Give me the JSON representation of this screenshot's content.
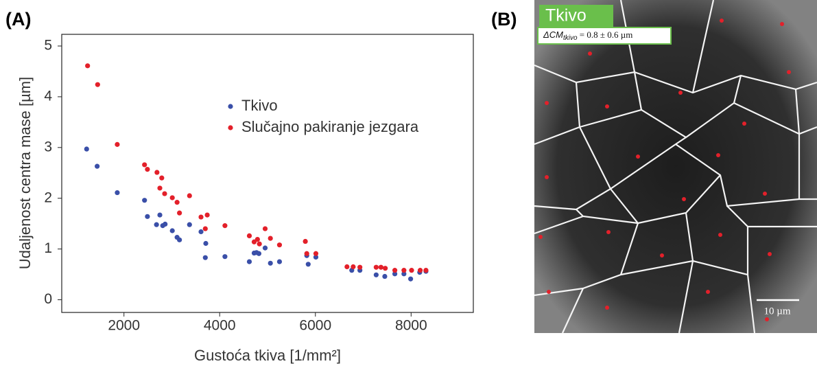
{
  "chart_data": {
    "type": "scatter",
    "panel_label": "(A)",
    "x_label": "Gustoća tkiva [1/mm²]",
    "y_label": "Udaljenost centra mase [µm]",
    "xlim": [
      700,
      9300
    ],
    "xticks": [
      2000,
      4000,
      6000,
      8000
    ],
    "ylim": [
      -0.25,
      5.23
    ],
    "yticks": [
      0,
      1,
      2,
      3,
      4,
      5
    ],
    "grid": false,
    "legend": "upper right",
    "series": [
      {
        "name": "Tkivo",
        "color": "#3a4fa8",
        "x": [
          1220,
          1440,
          1860,
          2430,
          2490,
          2680,
          2750,
          2810,
          2860,
          3010,
          3110,
          3160,
          3370,
          3610,
          3710,
          3700,
          4110,
          4620,
          4720,
          4770,
          4820,
          4950,
          5060,
          5250,
          5820,
          5850,
          6010,
          6760,
          6930,
          7270,
          7450,
          7660,
          7850,
          7990,
          8180,
          8310
        ],
        "values": [
          2.97,
          2.63,
          2.11,
          1.96,
          1.64,
          1.48,
          1.67,
          1.46,
          1.49,
          1.36,
          1.23,
          1.18,
          1.48,
          1.34,
          1.11,
          0.83,
          0.85,
          0.75,
          0.92,
          0.93,
          0.91,
          1.02,
          0.72,
          0.75,
          0.87,
          0.7,
          0.84,
          0.58,
          0.58,
          0.49,
          0.46,
          0.51,
          0.51,
          0.41,
          0.54,
          0.56
        ]
      },
      {
        "name": "Slučajno pakiranje jezgara",
        "color": "#e3202a",
        "x": [
          1240,
          1450,
          1860,
          2430,
          2490,
          2690,
          2790,
          2750,
          2850,
          3010,
          3110,
          3160,
          3370,
          3610,
          3740,
          3700,
          4110,
          4620,
          4720,
          4790,
          4830,
          4950,
          5060,
          5250,
          5790,
          5820,
          6010,
          6660,
          6790,
          6930,
          7270,
          7370,
          7460,
          7660,
          7850,
          8010,
          8190,
          8310
        ],
        "values": [
          4.61,
          4.24,
          3.06,
          2.66,
          2.57,
          2.51,
          2.4,
          2.2,
          2.09,
          2.01,
          1.92,
          1.71,
          2.05,
          1.63,
          1.67,
          1.4,
          1.46,
          1.26,
          1.14,
          1.19,
          1.1,
          1.4,
          1.21,
          1.08,
          1.15,
          0.91,
          0.91,
          0.65,
          0.65,
          0.64,
          0.64,
          0.64,
          0.62,
          0.58,
          0.58,
          0.58,
          0.58,
          0.58
        ]
      }
    ]
  },
  "panel_b": {
    "panel_label": "(B)",
    "tag": "Tkivo",
    "annotation": {
      "main": "ΔCM",
      "sub": "tkivo",
      "rest": " = 0.8 ± 0.6 µm"
    },
    "scale_bar": "10 µm"
  }
}
